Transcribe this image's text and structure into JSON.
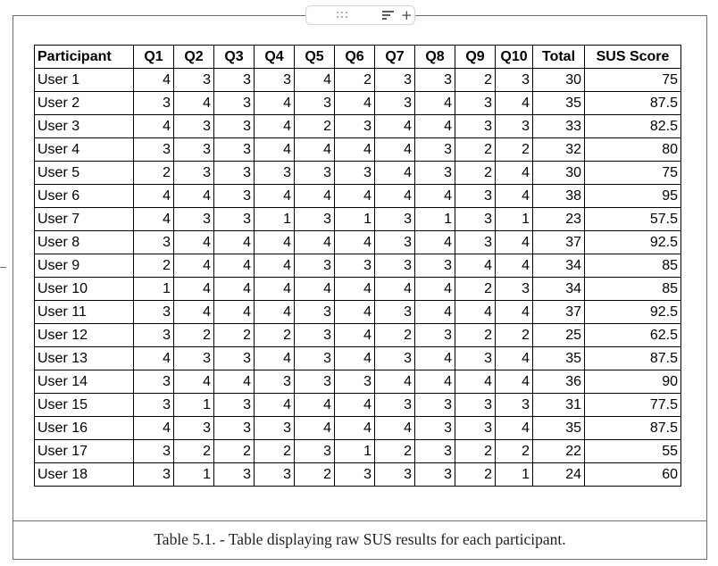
{
  "toolbar": {
    "drag_handle_icon": "drag-handle-icon",
    "menu_icon": "filter-lines-icon",
    "add_label": "+"
  },
  "table": {
    "columns": [
      "Participant",
      "Q1",
      "Q2",
      "Q3",
      "Q4",
      "Q5",
      "Q6",
      "Q7",
      "Q8",
      "Q9",
      "Q10",
      "Total",
      "SUS Score"
    ],
    "rows": [
      [
        "User 1",
        "4",
        "3",
        "3",
        "3",
        "4",
        "2",
        "3",
        "3",
        "2",
        "3",
        "30",
        "75"
      ],
      [
        "User 2",
        "3",
        "4",
        "3",
        "4",
        "3",
        "4",
        "3",
        "4",
        "3",
        "4",
        "35",
        "87.5"
      ],
      [
        "User 3",
        "4",
        "3",
        "3",
        "4",
        "2",
        "3",
        "4",
        "4",
        "3",
        "3",
        "33",
        "82.5"
      ],
      [
        "User 4",
        "3",
        "3",
        "3",
        "4",
        "4",
        "4",
        "4",
        "3",
        "2",
        "2",
        "32",
        "80"
      ],
      [
        "User 5",
        "2",
        "3",
        "3",
        "3",
        "3",
        "3",
        "4",
        "3",
        "2",
        "4",
        "30",
        "75"
      ],
      [
        "User 6",
        "4",
        "4",
        "3",
        "4",
        "4",
        "4",
        "4",
        "4",
        "3",
        "4",
        "38",
        "95"
      ],
      [
        "User 7",
        "4",
        "3",
        "3",
        "1",
        "3",
        "1",
        "3",
        "1",
        "3",
        "1",
        "23",
        "57.5"
      ],
      [
        "User 8",
        "3",
        "4",
        "4",
        "4",
        "4",
        "4",
        "3",
        "4",
        "3",
        "4",
        "37",
        "92.5"
      ],
      [
        "User 9",
        "2",
        "4",
        "4",
        "4",
        "3",
        "3",
        "3",
        "3",
        "4",
        "4",
        "34",
        "85"
      ],
      [
        "User 10",
        "1",
        "4",
        "4",
        "4",
        "4",
        "4",
        "4",
        "4",
        "2",
        "3",
        "34",
        "85"
      ],
      [
        "User 11",
        "3",
        "4",
        "4",
        "4",
        "3",
        "4",
        "3",
        "4",
        "4",
        "4",
        "37",
        "92.5"
      ],
      [
        "User 12",
        "3",
        "2",
        "2",
        "2",
        "3",
        "4",
        "2",
        "3",
        "2",
        "2",
        "25",
        "62.5"
      ],
      [
        "User 13",
        "4",
        "3",
        "3",
        "4",
        "3",
        "4",
        "3",
        "4",
        "3",
        "4",
        "35",
        "87.5"
      ],
      [
        "User 14",
        "3",
        "4",
        "4",
        "3",
        "3",
        "3",
        "4",
        "4",
        "4",
        "4",
        "36",
        "90"
      ],
      [
        "User 15",
        "3",
        "1",
        "3",
        "4",
        "4",
        "4",
        "3",
        "3",
        "3",
        "3",
        "31",
        "77.5"
      ],
      [
        "User 16",
        "4",
        "3",
        "3",
        "3",
        "4",
        "4",
        "4",
        "3",
        "3",
        "4",
        "35",
        "87.5"
      ],
      [
        "User 17",
        "3",
        "2",
        "2",
        "2",
        "3",
        "1",
        "2",
        "3",
        "2",
        "2",
        "22",
        "55"
      ],
      [
        "User 18",
        "3",
        "1",
        "3",
        "3",
        "2",
        "3",
        "3",
        "3",
        "2",
        "1",
        "24",
        "60"
      ]
    ]
  },
  "caption": "Table 5.1. - Table displaying raw SUS results for each participant."
}
